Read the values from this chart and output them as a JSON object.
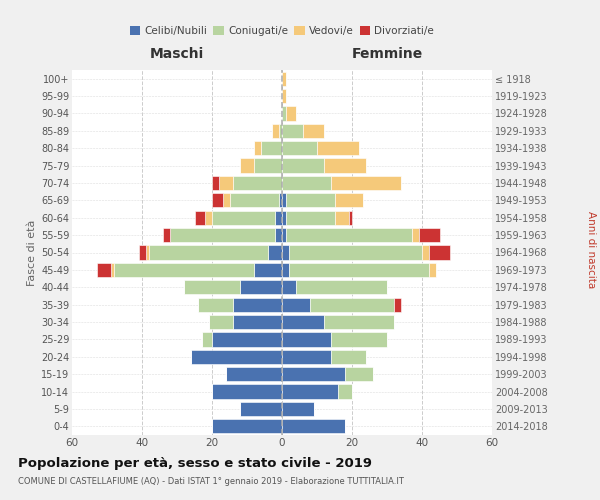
{
  "age_groups": [
    "0-4",
    "5-9",
    "10-14",
    "15-19",
    "20-24",
    "25-29",
    "30-34",
    "35-39",
    "40-44",
    "45-49",
    "50-54",
    "55-59",
    "60-64",
    "65-69",
    "70-74",
    "75-79",
    "80-84",
    "85-89",
    "90-94",
    "95-99",
    "100+"
  ],
  "birth_years": [
    "2014-2018",
    "2009-2013",
    "2004-2008",
    "1999-2003",
    "1994-1998",
    "1989-1993",
    "1984-1988",
    "1979-1983",
    "1974-1978",
    "1969-1973",
    "1964-1968",
    "1959-1963",
    "1954-1958",
    "1949-1953",
    "1944-1948",
    "1939-1943",
    "1934-1938",
    "1929-1933",
    "1924-1928",
    "1919-1923",
    "≤ 1918"
  ],
  "male": {
    "celibi": [
      20,
      12,
      20,
      16,
      26,
      20,
      14,
      14,
      12,
      8,
      4,
      2,
      2,
      1,
      0,
      0,
      0,
      0,
      0,
      0,
      0
    ],
    "coniugati": [
      0,
      0,
      0,
      0,
      0,
      3,
      7,
      10,
      16,
      40,
      34,
      30,
      18,
      14,
      14,
      8,
      6,
      1,
      0,
      0,
      0
    ],
    "vedovi": [
      0,
      0,
      0,
      0,
      0,
      0,
      0,
      0,
      0,
      1,
      1,
      0,
      2,
      2,
      4,
      4,
      2,
      2,
      0,
      0,
      0
    ],
    "divorziati": [
      0,
      0,
      0,
      0,
      0,
      0,
      0,
      0,
      0,
      4,
      2,
      2,
      3,
      3,
      2,
      0,
      0,
      0,
      0,
      0,
      0
    ]
  },
  "female": {
    "nubili": [
      18,
      9,
      16,
      18,
      14,
      14,
      12,
      8,
      4,
      2,
      2,
      1,
      1,
      1,
      0,
      0,
      0,
      0,
      0,
      0,
      0
    ],
    "coniugate": [
      0,
      0,
      4,
      8,
      10,
      16,
      20,
      24,
      26,
      40,
      38,
      36,
      14,
      14,
      14,
      12,
      10,
      6,
      1,
      0,
      0
    ],
    "vedove": [
      0,
      0,
      0,
      0,
      0,
      0,
      0,
      0,
      0,
      2,
      2,
      2,
      4,
      8,
      20,
      12,
      12,
      6,
      3,
      1,
      1
    ],
    "divorziate": [
      0,
      0,
      0,
      0,
      0,
      0,
      0,
      2,
      0,
      0,
      6,
      6,
      1,
      0,
      0,
      0,
      0,
      0,
      0,
      0,
      0
    ]
  },
  "colors": {
    "celibi": "#4a72b0",
    "coniugati": "#b8d4a0",
    "vedovi": "#f5c97a",
    "divorziati": "#cc3333"
  },
  "xlim": 60,
  "title": "Popolazione per età, sesso e stato civile - 2019",
  "subtitle": "COMUNE DI CASTELLAFIUME (AQ) - Dati ISTAT 1° gennaio 2019 - Elaborazione TUTTITALIA.IT",
  "ylabel_left": "Fasce di età",
  "ylabel_right": "Anni di nascita",
  "xlabel_left": "Maschi",
  "xlabel_right": "Femmine",
  "bg_color": "#f0f0f0",
  "plot_bg": "#ffffff"
}
